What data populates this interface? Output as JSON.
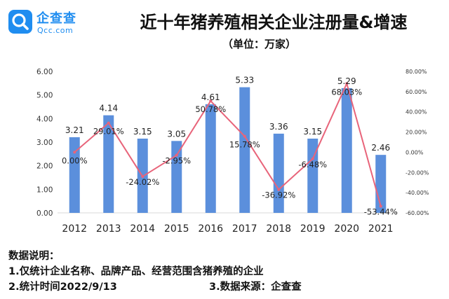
{
  "brand": {
    "name": "企查查",
    "site": "Qcc.com",
    "color": "#1f8df0"
  },
  "chart_data": {
    "type": "bar",
    "title": "近十年猪养殖相关企业注册量&增速",
    "subtitle": "（单位：万家）",
    "categories": [
      "2012",
      "2013",
      "2014",
      "2015",
      "2016",
      "2017",
      "2018",
      "2019",
      "2020",
      "2021"
    ],
    "series": [
      {
        "type": "bar",
        "color": "#5b8fdc",
        "values": [
          3.21,
          4.14,
          3.15,
          3.05,
          4.61,
          5.33,
          3.36,
          3.15,
          5.29,
          2.46
        ],
        "labels": [
          "3.21",
          "4.14",
          "3.15",
          "3.05",
          "4.61",
          "5.33",
          "3.36",
          "3.15",
          "5.29",
          "2.46"
        ]
      },
      {
        "type": "line",
        "axis": "right",
        "color": "#e8647a",
        "values": [
          0.0,
          29.01,
          -24.02,
          -2.95,
          50.78,
          15.78,
          -36.92,
          -6.48,
          68.03,
          -53.44
        ],
        "labels": [
          "0.00%",
          "29.01%",
          "-24.02%",
          "-2.95%",
          "50.78%",
          "15.78%",
          "-36.92%",
          "-6.48%",
          "68.03%",
          "-53.44%"
        ]
      }
    ],
    "left_axis": {
      "ylim": [
        0,
        6
      ],
      "ticks": [
        "0.00",
        "1.00",
        "2.00",
        "3.00",
        "4.00",
        "5.00",
        "6.00"
      ]
    },
    "right_axis": {
      "ylim": [
        -60,
        80
      ],
      "ticks": [
        "-60.00%",
        "-40.00%",
        "-20.00%",
        "0.00%",
        "20.00%",
        "40.00%",
        "60.00%",
        "80.00%"
      ]
    }
  },
  "notes": {
    "heading": "数据说明：",
    "line1": "1.仅统计企业名称、品牌产品、经营范围含猪养殖的企业",
    "line2": "2.统计时间2022/9/13",
    "line3": "3.数据来源：企查查"
  }
}
